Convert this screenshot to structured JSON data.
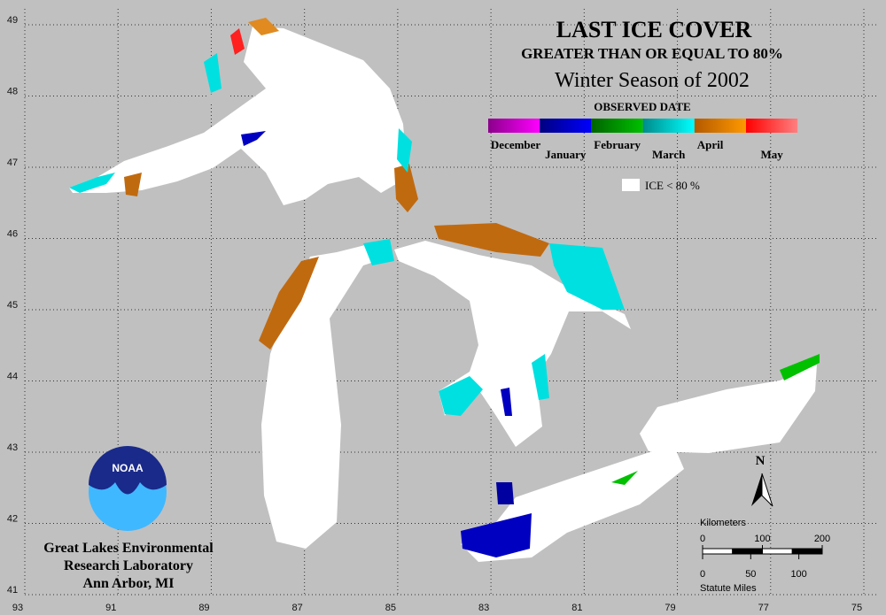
{
  "header": {
    "title": "LAST ICE COVER",
    "subtitle": "GREATER THAN OR EQUAL TO 80%",
    "season": "Winter Season of 2002"
  },
  "legend": {
    "title": "OBSERVED DATE",
    "items": [
      {
        "label": "December",
        "colors": [
          "#8b008b",
          "#ff00ff"
        ]
      },
      {
        "label": "January",
        "colors": [
          "#000080",
          "#0000ff"
        ]
      },
      {
        "label": "February",
        "colors": [
          "#006400",
          "#00c000"
        ]
      },
      {
        "label": "March",
        "colors": [
          "#008b8b",
          "#00ffff"
        ]
      },
      {
        "label": "April",
        "colors": [
          "#b35900",
          "#ff9900"
        ]
      },
      {
        "label": "May",
        "colors": [
          "#ff0000",
          "#ff8080"
        ]
      }
    ],
    "no_ice_label": "ICE < 80 %"
  },
  "map": {
    "lat_ticks": [
      49,
      48,
      47,
      46,
      45,
      44,
      43,
      42,
      41
    ],
    "lon_ticks": [
      93,
      91,
      89,
      87,
      85,
      83,
      81,
      79,
      77,
      75
    ]
  },
  "compass": "N",
  "scale_bar": {
    "km_label": "Kilometers",
    "km_ticks": [
      0,
      100,
      200
    ],
    "mile_label": "Statute Miles",
    "mile_ticks": [
      0,
      50,
      100
    ]
  },
  "logo": "NOAA",
  "credit": [
    "Great Lakes Environmental",
    "Research Laboratory",
    "Ann Arbor, MI"
  ]
}
